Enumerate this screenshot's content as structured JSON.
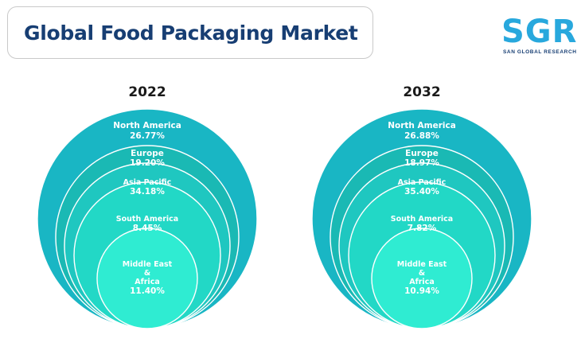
{
  "header": {
    "title": "Global Food Packaging Market",
    "logo_mark": "SGR",
    "logo_subtitle": "SAN GLOBAL RESEARCH"
  },
  "colors": {
    "ring_north_america": "#19b6c4",
    "ring_europe": "#1ab9b4",
    "ring_asia_pacific": "#1fc7c0",
    "ring_south_america": "#22d8c6",
    "ring_middle_east_africa": "#2fecd2",
    "ring_stroke": "#ffffff"
  },
  "chart_data": [
    {
      "type": "nested-circles",
      "title": "2022",
      "segments": [
        {
          "label": "North America",
          "value": 26.77,
          "display": "26.77%"
        },
        {
          "label": "Europe",
          "value": 19.2,
          "display": "19.20%"
        },
        {
          "label": "Asia Pacific",
          "value": 34.18,
          "display": "34.18%"
        },
        {
          "label": "South America",
          "value": 8.45,
          "display": "8.45%"
        },
        {
          "label_lines": [
            "Middle East",
            "&",
            "Africa"
          ],
          "value": 11.4,
          "display": "11.40%"
        }
      ]
    },
    {
      "type": "nested-circles",
      "title": "2032",
      "segments": [
        {
          "label": "North America",
          "value": 26.88,
          "display": "26.88%"
        },
        {
          "label": "Europe",
          "value": 18.97,
          "display": "18.97%"
        },
        {
          "label": "Asia Pacific",
          "value": 35.4,
          "display": "35.40%"
        },
        {
          "label": "South America",
          "value": 7.82,
          "display": "7.82%"
        },
        {
          "label_lines": [
            "Middle East",
            "&",
            "Africa"
          ],
          "value": 10.94,
          "display": "10.94%"
        }
      ]
    }
  ]
}
